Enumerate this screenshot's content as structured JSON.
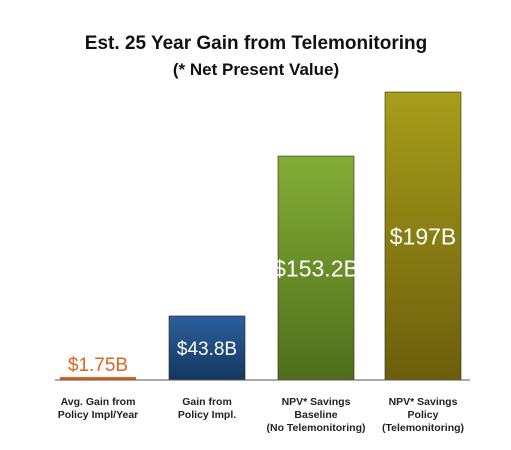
{
  "chart_data": {
    "type": "bar",
    "title": "Est. 25 Year Gain from Telemonitoring",
    "subtitle": "(* Net Present Value)",
    "categories": [
      [
        "Avg. Gain from",
        "Policy Impl/Year"
      ],
      [
        "Gain from",
        "Policy Impl."
      ],
      [
        "NPV* Savings",
        "Baseline",
        "(No Telemonitoring)"
      ],
      [
        "NPV* Savings",
        "Policy",
        "(Telemonitoring)"
      ]
    ],
    "values": [
      1.75,
      43.8,
      153.2,
      197
    ],
    "value_labels": [
      "$1.75B",
      "$43.8B",
      "$153.2B",
      "$197B"
    ],
    "unit": "B",
    "ylim": [
      0,
      197
    ],
    "grid": false,
    "legend": "none",
    "colors": {
      "bar_1": "#e0651a",
      "bar_2_top": "#2c5f9e",
      "bar_2_bottom": "#14375f",
      "bar_3_top": "#84ad36",
      "bar_3_bottom": "#4d6e1b",
      "bar_4_top": "#a69e1a",
      "bar_4_bottom": "#6b5e0c",
      "label_outside": "#e0651a",
      "label_inside": "#ffffff",
      "baseline": "#555555"
    }
  }
}
